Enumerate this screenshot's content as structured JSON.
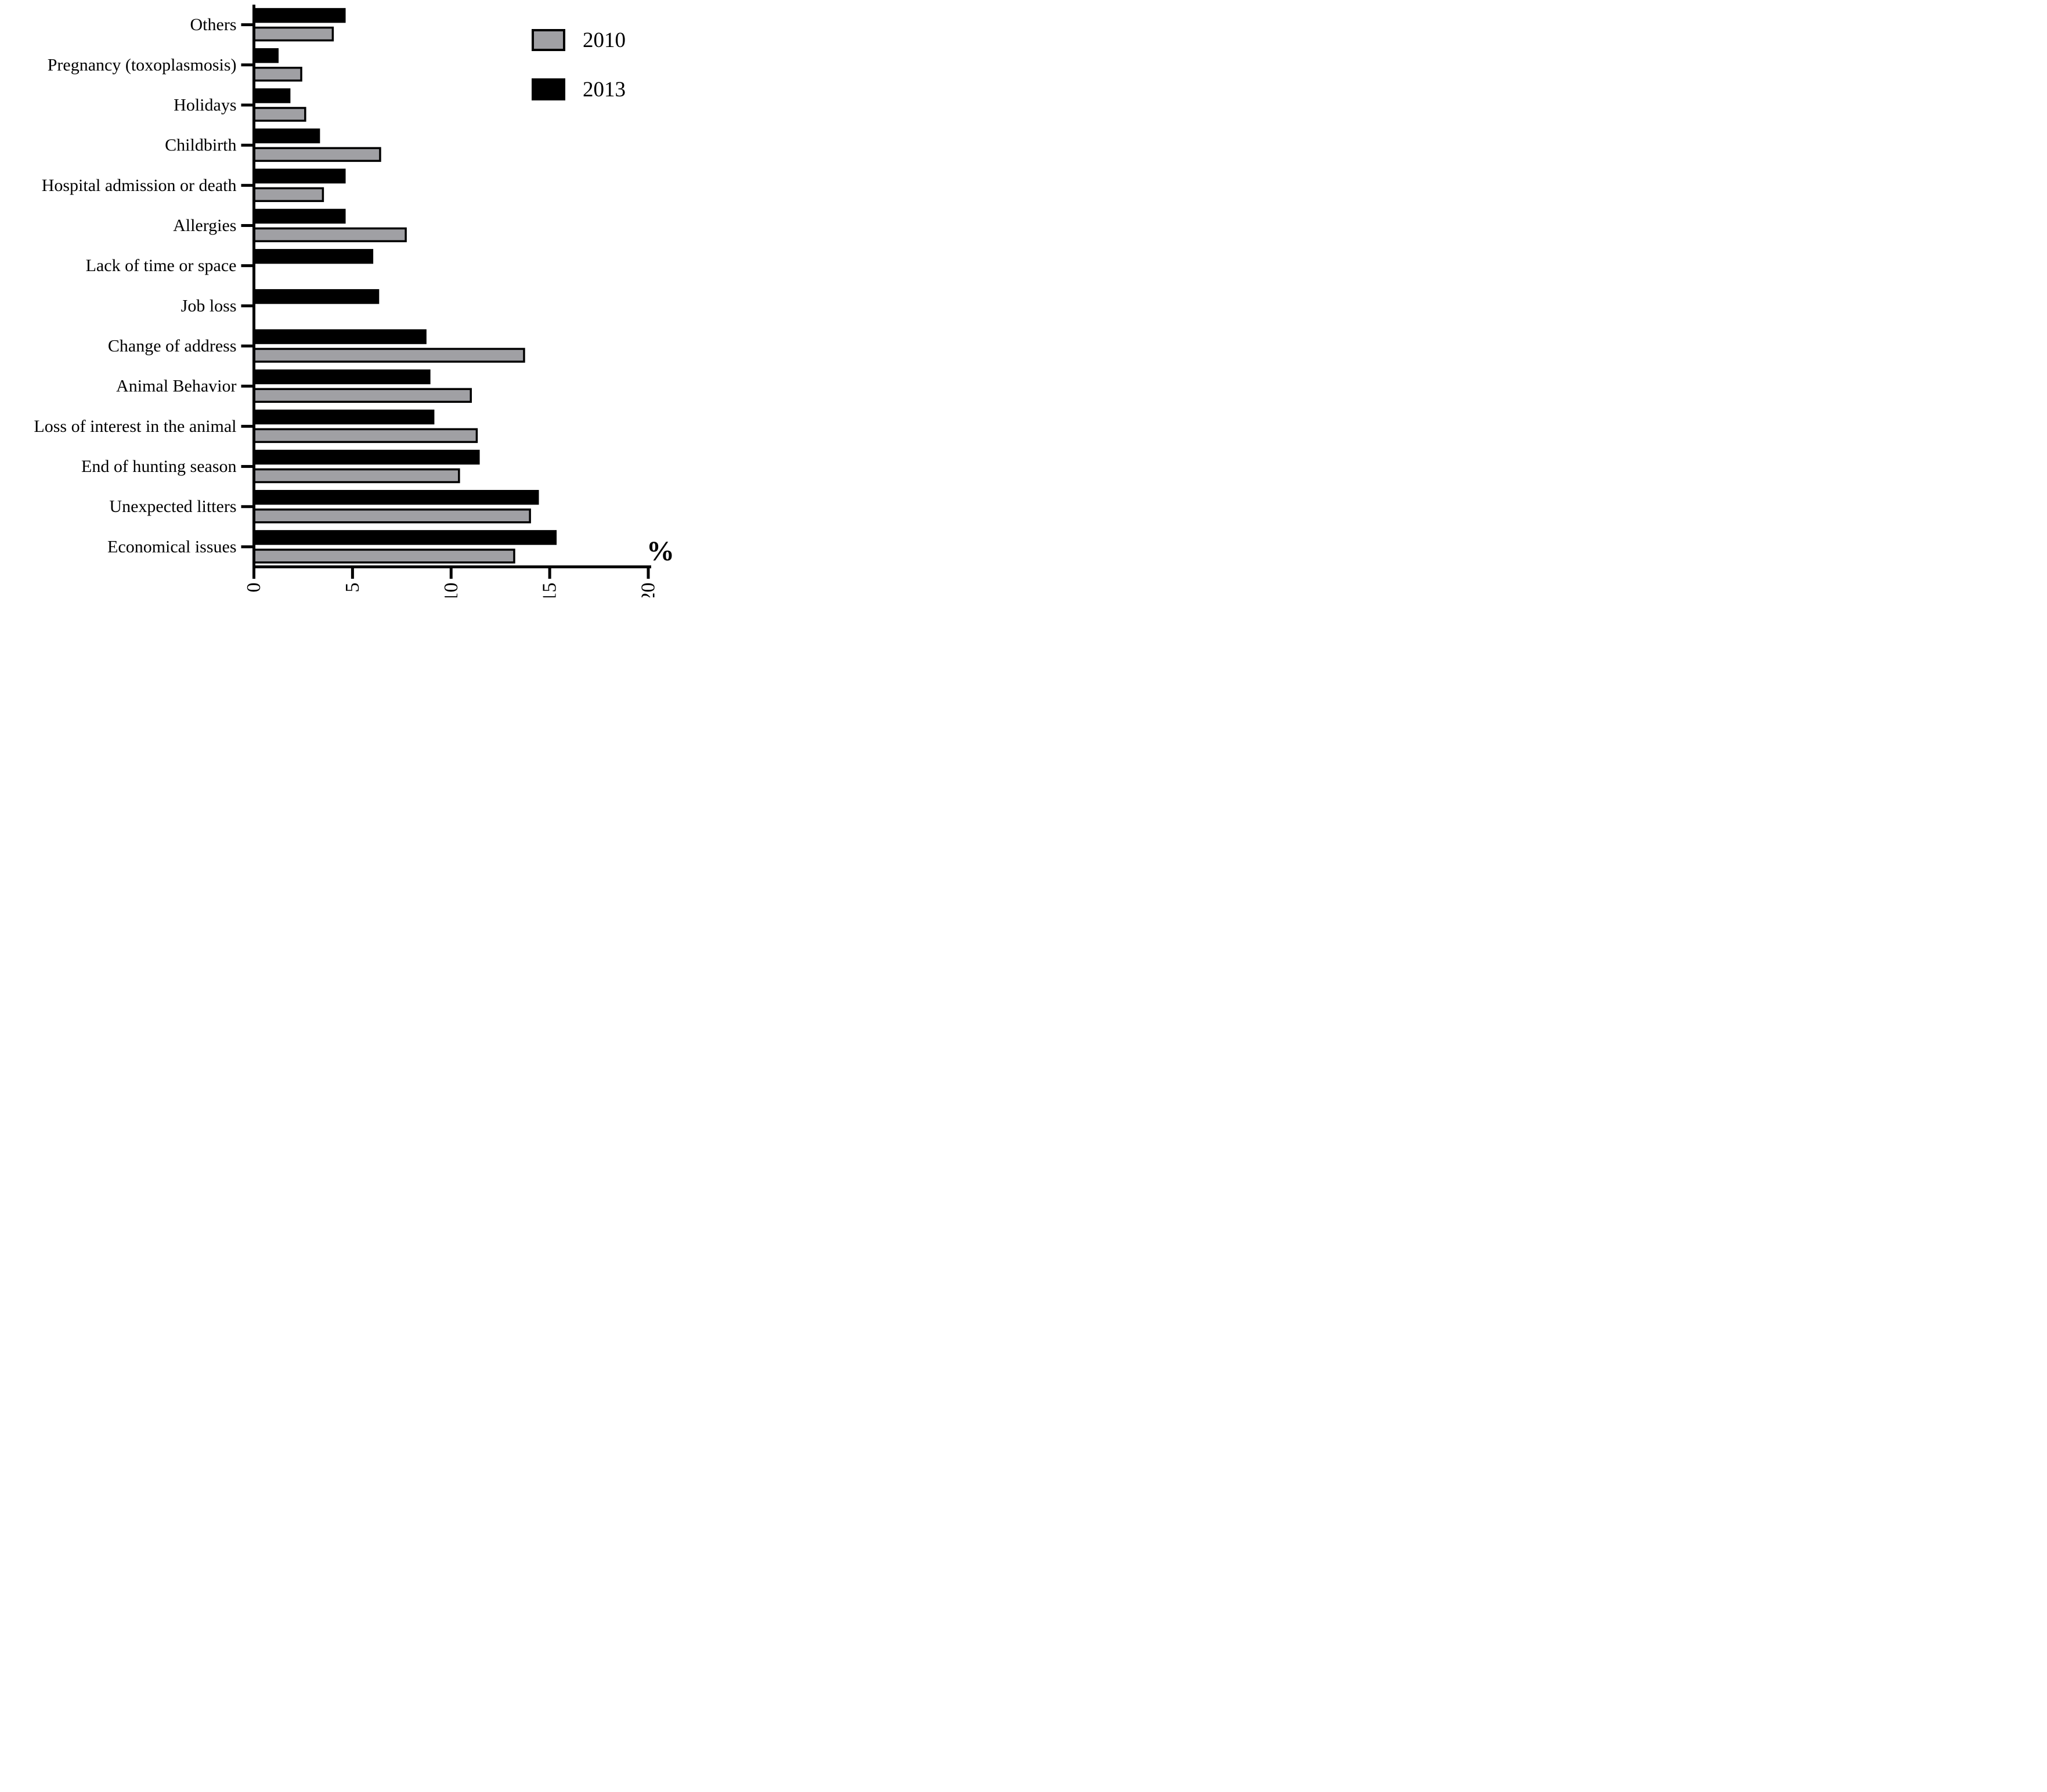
{
  "chart_data": {
    "type": "bar",
    "orientation": "horizontal",
    "title": "",
    "xlabel": "%",
    "ylabel": "",
    "xlim": [
      0,
      20
    ],
    "xticks": [
      0,
      5,
      10,
      15,
      20
    ],
    "xtick_labels": [
      "0",
      "5",
      "10",
      "15",
      "20"
    ],
    "xtick_label_rotation_deg": -90,
    "grid": false,
    "legend_position": "top-right",
    "axis_color": "#000000",
    "categories": [
      "Others",
      "Pregnancy (toxoplasmosis)",
      "Holidays",
      "Childbirth",
      "Hospital admission or death",
      "Allergies",
      "Lack of time or space",
      "Job loss",
      "Change of address",
      "Animal Behavior",
      "Loss of interest in the animal",
      "End of hunting season",
      "Unexpected litters",
      "Economical issues"
    ],
    "series": [
      {
        "name": "2010",
        "color": "#a0a0a4",
        "values": [
          4.0,
          2.4,
          2.6,
          6.4,
          3.5,
          7.7,
          0,
          0,
          13.7,
          11.0,
          11.3,
          10.4,
          14.0,
          13.2
        ]
      },
      {
        "name": "2013",
        "color": "#000000",
        "values": [
          4.6,
          1.2,
          1.8,
          3.3,
          4.6,
          4.6,
          6.0,
          6.3,
          8.7,
          8.9,
          9.1,
          11.4,
          14.4,
          15.3
        ]
      }
    ]
  }
}
